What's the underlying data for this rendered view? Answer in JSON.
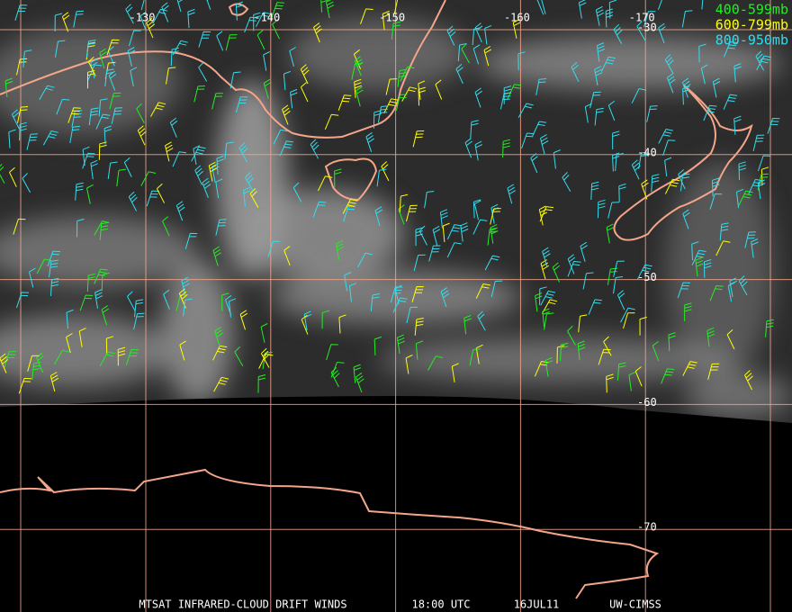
{
  "map": {
    "longitude_labels": [
      -130,
      -140,
      -150,
      -160,
      -170
    ],
    "latitude_labels": [
      -30,
      -40,
      -50,
      -60,
      -70
    ],
    "legend": [
      {
        "label": "400-599mb",
        "color": "#22ee22"
      },
      {
        "label": "600-799mb",
        "color": "#ffff00"
      },
      {
        "label": "800-950mb",
        "color": "#33ddee"
      }
    ],
    "footer": [
      "MTSAT INFRARED-CLOUD DRIFT WINDS",
      "18:00 UTC",
      "16JUL11",
      "UW-CIMSS"
    ]
  }
}
